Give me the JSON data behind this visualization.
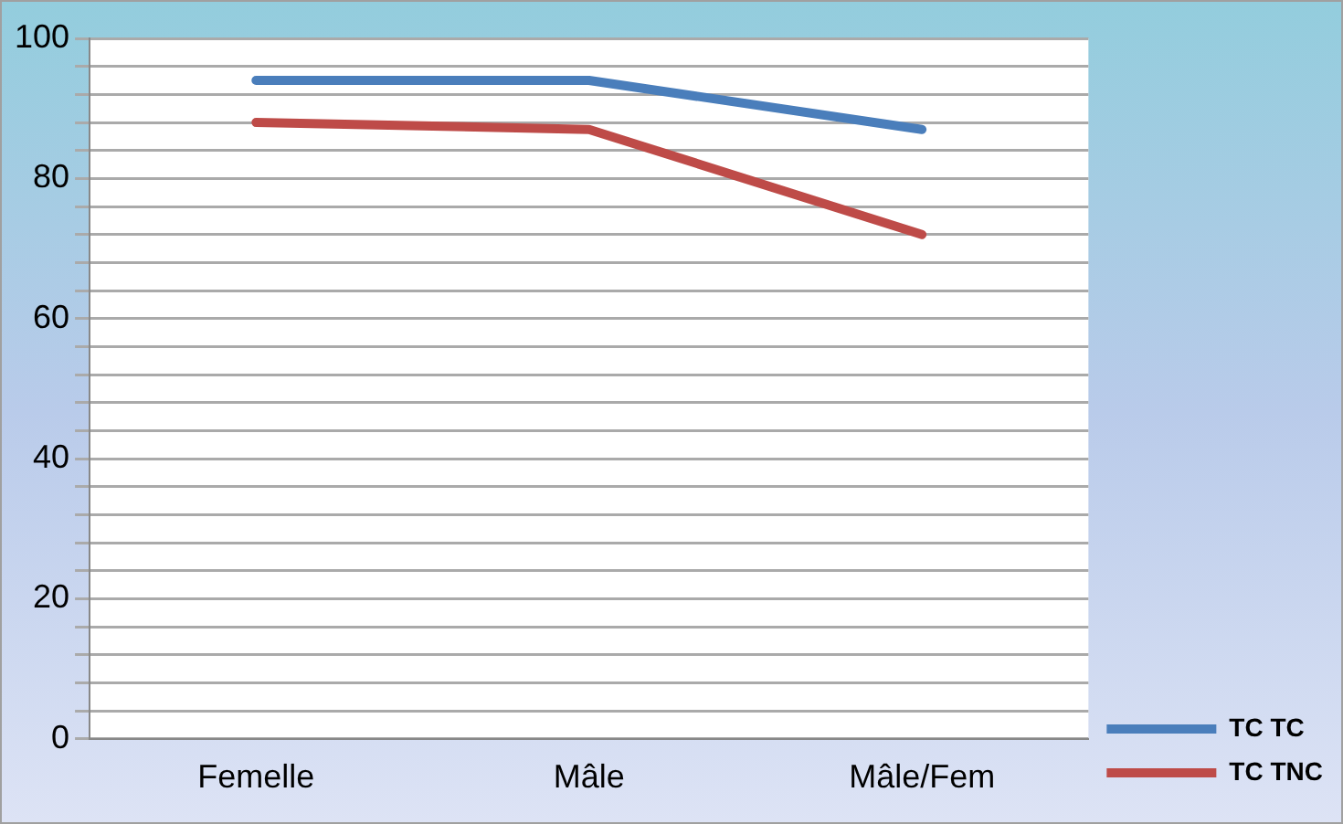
{
  "chart_data": {
    "type": "line",
    "categories": [
      "Femelle",
      "Mâle",
      "Mâle/Fem"
    ],
    "series": [
      {
        "name": "TC TC",
        "color": "#4a7ebb",
        "values": [
          94,
          94,
          87
        ]
      },
      {
        "name": "TC TNC",
        "color": "#be4b48",
        "values": [
          88,
          87,
          72
        ]
      }
    ],
    "ylim": [
      0,
      100
    ],
    "yticks": [
      0,
      {
        "value": 4,
        "label": null
      },
      {
        "value": 8,
        "label": null
      },
      {
        "value": 12,
        "label": null
      },
      {
        "value": 16,
        "label": null
      },
      20,
      {
        "value": 24,
        "label": null
      },
      {
        "value": 28,
        "label": null
      },
      {
        "value": 32,
        "label": null
      },
      {
        "value": 36,
        "label": null
      },
      40,
      {
        "value": 44,
        "label": null
      },
      {
        "value": 48,
        "label": null
      },
      {
        "value": 52,
        "label": null
      },
      {
        "value": 56,
        "label": null
      },
      60,
      {
        "value": 64,
        "label": null
      },
      {
        "value": 68,
        "label": null
      },
      {
        "value": 72,
        "label": null
      },
      {
        "value": 76,
        "label": null
      },
      80,
      {
        "value": 84,
        "label": null
      },
      {
        "value": 88,
        "label": null
      },
      {
        "value": 92,
        "label": null
      },
      {
        "value": 96,
        "label": null
      },
      100
    ],
    "grid": "y",
    "legend": "bottom right",
    "marker": "none",
    "line_style": "solid"
  }
}
